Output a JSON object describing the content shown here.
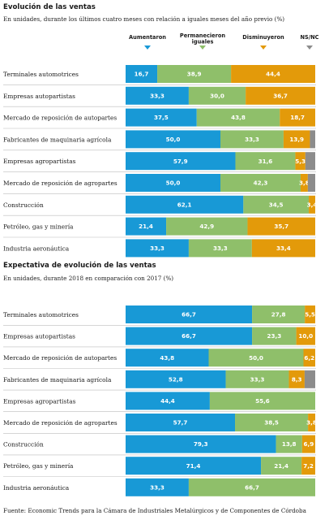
{
  "colors": {
    "aumentaron": "#1899d6",
    "permanecieron": "#8fbf6a",
    "disminuyeron": "#e39a0a",
    "nsnc": "#8c8c8c"
  },
  "chart_data": [
    {
      "type": "bar",
      "orientation": "horizontal",
      "stacked": true,
      "normalized": true,
      "title": "Evolución de las ventas",
      "subtitle": "En unidades, durante los últimos cuatro meses con relación a iguales meses del año previo (%)",
      "legend": {
        "placement": "top",
        "entries": [
          "Aumentaron",
          "Permanecieron iguales",
          "Disminuyeron",
          "NS/NC"
        ],
        "icons": [
          "down-triangle-icon",
          "down-triangle-icon",
          "down-triangle-icon",
          "down-triangle-icon"
        ]
      },
      "categories": [
        "Terminales automotrices",
        "Empresas autopartistas",
        "Mercado de reposición de autopartes",
        "Fabricantes de maquinaria agrícola",
        "Empresas agropartistas",
        "Mercado de reposición de agropartes",
        "Construcción",
        "Petróleo, gas y minería",
        "Industria aeronáutica"
      ],
      "series": [
        {
          "name": "Aumentaron",
          "values": [
            16.7,
            33.3,
            37.5,
            50.0,
            57.9,
            50.0,
            62.1,
            21.4,
            33.3
          ]
        },
        {
          "name": "Permanecieron iguales",
          "values": [
            38.9,
            30.0,
            43.8,
            33.3,
            31.6,
            42.3,
            34.5,
            42.9,
            33.3
          ]
        },
        {
          "name": "Disminuyeron",
          "values": [
            44.4,
            36.7,
            18.7,
            13.9,
            5.3,
            3.8,
            3.4,
            35.7,
            33.4
          ]
        },
        {
          "name": "NS/NC",
          "values": [
            0,
            0,
            0,
            2.8,
            5.2,
            3.9,
            0,
            0,
            0
          ]
        }
      ],
      "labels": [
        [
          "16,7",
          "38,9",
          "44,4",
          ""
        ],
        [
          "33,3",
          "30,0",
          "36,7",
          ""
        ],
        [
          "37,5",
          "43,8",
          "18,7",
          ""
        ],
        [
          "50,0",
          "33,3",
          "13,9",
          ""
        ],
        [
          "57,9",
          "31,6",
          "5,3",
          ""
        ],
        [
          "50,0",
          "42,3",
          "3,8",
          ""
        ],
        [
          "62,1",
          "34,5",
          "3,4",
          ""
        ],
        [
          "21,4",
          "42,9",
          "35,7",
          ""
        ],
        [
          "33,3",
          "33,3",
          "33,4",
          ""
        ]
      ]
    },
    {
      "type": "bar",
      "orientation": "horizontal",
      "stacked": true,
      "normalized": true,
      "title": "Expectativa de evolución de las ventas",
      "subtitle": "En unidades, durante 2018 en comparación con 2017 (%)",
      "categories": [
        "Terminales automotrices",
        "Empresas autopartistas",
        "Mercado de reposición de autopartes",
        "Fabricantes de maquinaria agrícola",
        "Empresas agropartistas",
        "Mercado de reposición de agropartes",
        "Construcción",
        "Petróleo, gas y minería",
        "Industria aeronáutica"
      ],
      "series": [
        {
          "name": "Aumentaron",
          "values": [
            66.7,
            66.7,
            43.8,
            52.8,
            44.4,
            57.7,
            79.3,
            71.4,
            33.3
          ]
        },
        {
          "name": "Permanecieron iguales",
          "values": [
            27.8,
            23.3,
            50.0,
            33.3,
            55.6,
            38.5,
            13.8,
            21.4,
            66.7
          ]
        },
        {
          "name": "Disminuyeron",
          "values": [
            5.5,
            10.0,
            6.2,
            8.3,
            0,
            3.8,
            6.9,
            7.2,
            0
          ]
        },
        {
          "name": "NS/NC",
          "values": [
            0,
            0,
            0,
            5.6,
            0,
            0,
            0,
            0,
            0
          ]
        }
      ],
      "labels": [
        [
          "66,7",
          "27,8",
          "5,5",
          ""
        ],
        [
          "66,7",
          "23,3",
          "10,0",
          ""
        ],
        [
          "43,8",
          "50,0",
          "6,2",
          ""
        ],
        [
          "52,8",
          "33,3",
          "8,3",
          ""
        ],
        [
          "44,4",
          "55,6",
          "",
          ""
        ],
        [
          "57,7",
          "38,5",
          "3,8",
          ""
        ],
        [
          "79,3",
          "13,8",
          "6,9",
          ""
        ],
        [
          "71,4",
          "21,4",
          "7,2",
          ""
        ],
        [
          "33,3",
          "66,7",
          "",
          ""
        ]
      ]
    }
  ],
  "source": "Fuente: Economic Trends para la Cámara de Industriales Metalúrgicos y de Componentes de Córdoba"
}
